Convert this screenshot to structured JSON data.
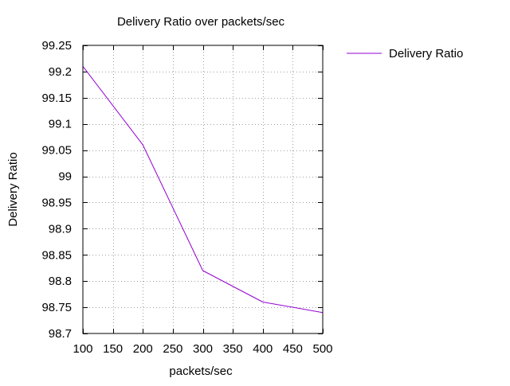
{
  "chart_data": {
    "type": "line",
    "title": "Delivery Ratio over packets/sec",
    "xlabel": "packets/sec",
    "ylabel": "Delivery Ratio",
    "x": [
      100,
      200,
      300,
      400,
      500
    ],
    "xlim": [
      100,
      500
    ],
    "ylim": [
      98.7,
      99.25
    ],
    "xticks": [
      100,
      150,
      200,
      250,
      300,
      350,
      400,
      450,
      500
    ],
    "xtick_labels": [
      "100",
      "150",
      "200",
      "250",
      "300",
      "350",
      "400",
      "450",
      "500"
    ],
    "yticks": [
      98.7,
      98.75,
      98.8,
      98.85,
      98.9,
      98.95,
      99,
      99.05,
      99.1,
      99.15,
      99.2,
      99.25
    ],
    "ytick_labels": [
      "98.7",
      "98.75",
      "98.8",
      "98.85",
      "98.9",
      "98.95",
      "99",
      "99.05",
      "99.1",
      "99.15",
      "99.2",
      "99.25"
    ],
    "grid": true,
    "grid_style": "dotted",
    "legend_position": "outside-right-top",
    "series": [
      {
        "name": "Delivery Ratio",
        "color": "#9400d3",
        "values": [
          99.21,
          99.06,
          98.82,
          98.76,
          98.74
        ]
      }
    ]
  }
}
